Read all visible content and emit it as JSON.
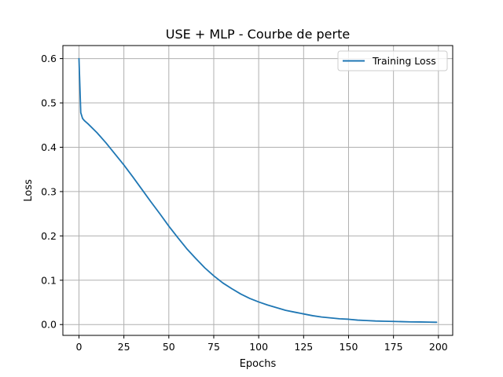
{
  "chart_data": {
    "type": "line",
    "title": "USE + MLP - Courbe de perte",
    "xlabel": "Epochs",
    "ylabel": "Loss",
    "xlim": [
      -8.95,
      207.95
    ],
    "ylim": [
      -0.0244,
      0.6294
    ],
    "grid": true,
    "legend_position": "top-right",
    "xticks": [
      0,
      25,
      50,
      75,
      100,
      125,
      150,
      175,
      200
    ],
    "yticks": [
      0.0,
      0.1,
      0.2,
      0.3,
      0.4,
      0.5,
      0.6
    ],
    "xtick_labels": [
      "0",
      "25",
      "50",
      "75",
      "100",
      "125",
      "150",
      "175",
      "200"
    ],
    "ytick_labels": [
      "0.0",
      "0.1",
      "0.2",
      "0.3",
      "0.4",
      "0.5",
      "0.6"
    ],
    "series": [
      {
        "name": "Training Loss",
        "color": "#1f77b4",
        "x": [
          0,
          1,
          2,
          3,
          5,
          10,
          15,
          20,
          25,
          30,
          35,
          40,
          45,
          50,
          55,
          60,
          65,
          70,
          75,
          80,
          85,
          90,
          95,
          100,
          105,
          110,
          115,
          120,
          125,
          130,
          135,
          140,
          145,
          150,
          155,
          160,
          165,
          170,
          175,
          180,
          185,
          190,
          195,
          199
        ],
        "values": [
          0.6,
          0.478,
          0.465,
          0.46,
          0.453,
          0.433,
          0.41,
          0.385,
          0.36,
          0.333,
          0.305,
          0.277,
          0.25,
          0.222,
          0.196,
          0.171,
          0.149,
          0.128,
          0.11,
          0.094,
          0.081,
          0.069,
          0.059,
          0.051,
          0.044,
          0.038,
          0.032,
          0.028,
          0.024,
          0.02,
          0.017,
          0.015,
          0.013,
          0.012,
          0.01,
          0.009,
          0.008,
          0.0075,
          0.007,
          0.0065,
          0.006,
          0.0058,
          0.0055,
          0.0052
        ]
      }
    ]
  }
}
